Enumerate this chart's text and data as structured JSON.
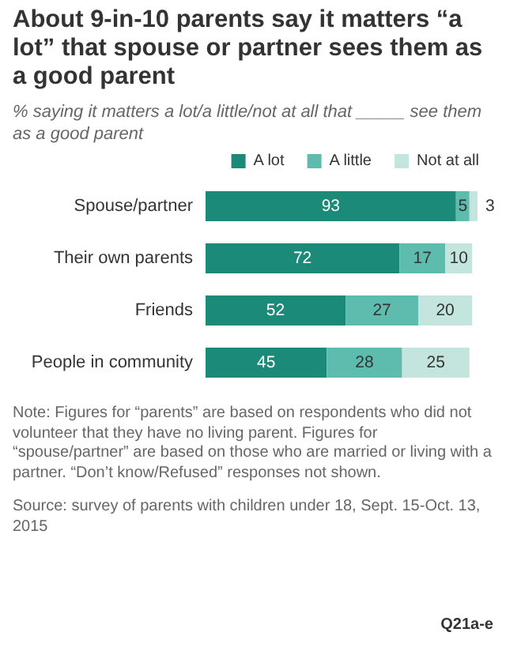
{
  "chart_data": {
    "type": "bar",
    "orientation": "horizontal",
    "stacked": true,
    "title": "About 9-in-10 parents say it matters “a lot” that spouse or partner sees them as a good parent",
    "subtitle": "% saying it matters a lot/a little/not at all that _____ see them as a good parent",
    "categories": [
      "Spouse/partner",
      "Their own parents",
      "Friends",
      "People in community"
    ],
    "series": [
      {
        "name": "A lot",
        "color": "#1b8a78",
        "values": [
          93,
          72,
          52,
          45
        ]
      },
      {
        "name": "A little",
        "color": "#5dbcad",
        "values": [
          5,
          17,
          27,
          28
        ]
      },
      {
        "name": "Not at all",
        "color": "#c4e5de",
        "values": [
          3,
          10,
          20,
          25
        ]
      }
    ],
    "data_labels": true,
    "legend": "top right",
    "annotations": [
      "Note: Figures for “parents” are based on respondents who did not volunteer that they have no living parent. Figures for “spouse/partner” are based on those who are married or living with a partner. “Don’t know/Refused” responses not shown.",
      "Source: survey of parents with children under 18, Sept. 15-Oct. 13, 2015",
      "Q21a-e"
    ]
  }
}
